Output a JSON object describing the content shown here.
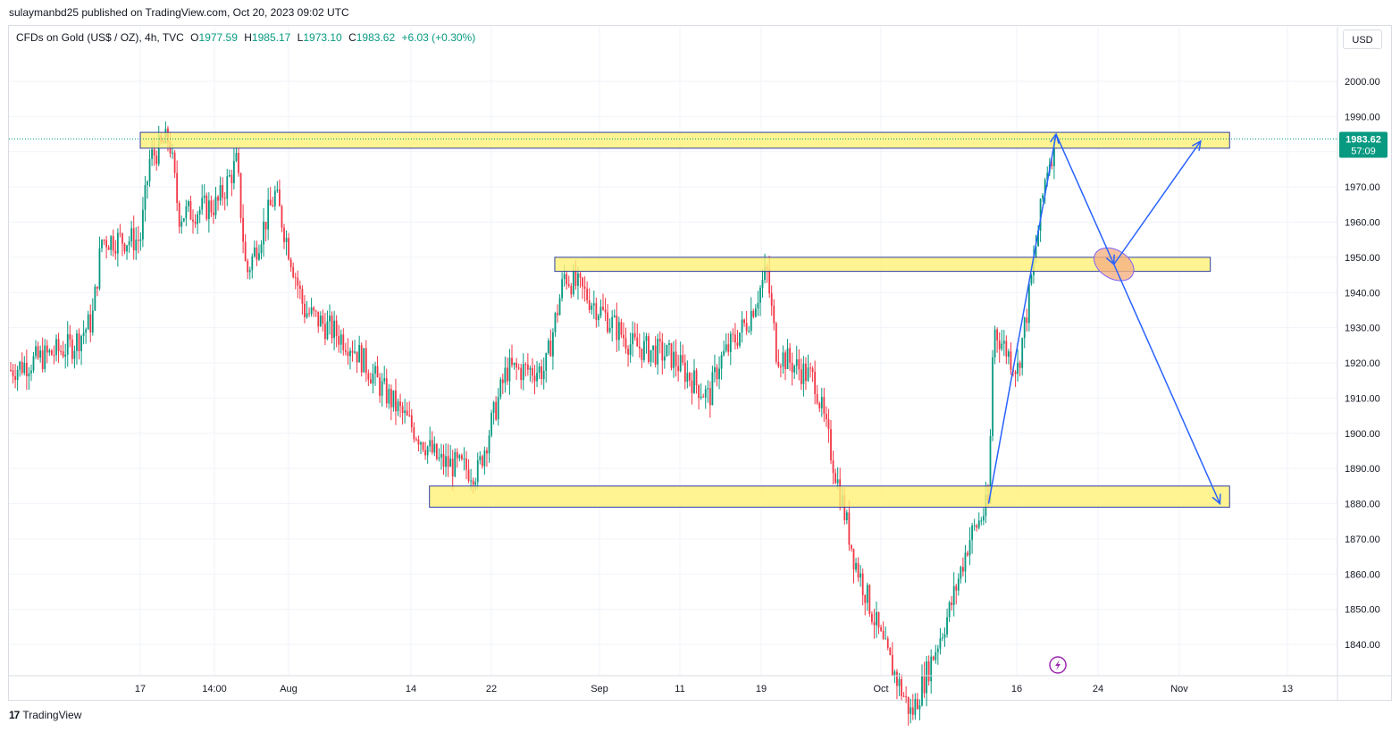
{
  "header": {
    "publisher": "sulaymanbd25 published on TradingView.com, Oct 20, 2023 09:02 UTC"
  },
  "legend": {
    "symbol": "CFDs on Gold (US$ / OZ), 4h, TVC",
    "open_label": "O",
    "open": "1977.59",
    "high_label": "H",
    "high": "1985.17",
    "low_label": "L",
    "low": "1973.10",
    "close_label": "C",
    "close": "1983.62",
    "change": "+6.03 (+0.30%)"
  },
  "currency_button": "USD",
  "price_tag": {
    "price": "1983.62",
    "countdown": "57:09"
  },
  "footer": {
    "brand": "TradingView"
  },
  "colors": {
    "up": "#089981",
    "down": "#f23645",
    "zone_fill": "#fff176",
    "zone_border": "#2d3e9e",
    "arrow": "#2962ff",
    "ellipse_fill": "#f5b183",
    "ellipse_stroke": "#7b61ff"
  },
  "chart_data": {
    "type": "candlestick",
    "symbol": "CFDs on Gold (US$ / OZ)",
    "timeframe": "4h",
    "y_axis": {
      "ticks": [
        1840,
        1850,
        1860,
        1870,
        1880,
        1890,
        1900,
        1910,
        1920,
        1930,
        1940,
        1950,
        1960,
        1970,
        1980,
        1990,
        2000
      ],
      "range": [
        1832,
        2010
      ],
      "position": "right"
    },
    "x_axis": {
      "tick_labels": [
        "17",
        "14:00",
        "Aug",
        "14",
        "22",
        "Sep",
        "11",
        "19",
        "Oct",
        "16",
        "24",
        "Nov",
        "13"
      ]
    },
    "grid": true,
    "price_path": [
      {
        "t": "Jul 10",
        "price": 1925
      },
      {
        "t": "Jul 12",
        "price": 1932
      },
      {
        "t": "Jul 13",
        "price": 1955
      },
      {
        "t": "Jul 17",
        "price": 1955
      },
      {
        "t": "Jul 18",
        "price": 1978
      },
      {
        "t": "Jul 20",
        "price": 1984
      },
      {
        "t": "Jul 21",
        "price": 1962
      },
      {
        "t": "Jul 25",
        "price": 1965
      },
      {
        "t": "Jul 27",
        "price": 1977
      },
      {
        "t": "Jul 28",
        "price": 1945
      },
      {
        "t": "Jul 31",
        "price": 1968
      },
      {
        "t": "Aug 3",
        "price": 1935
      },
      {
        "t": "Aug 8",
        "price": 1925
      },
      {
        "t": "Aug 11",
        "price": 1913
      },
      {
        "t": "Aug 17",
        "price": 1892
      },
      {
        "t": "Aug 21",
        "price": 1889
      },
      {
        "t": "Aug 24",
        "price": 1918
      },
      {
        "t": "Aug 28",
        "price": 1918
      },
      {
        "t": "Aug 30",
        "price": 1945
      },
      {
        "t": "Sep 1",
        "price": 1940
      },
      {
        "t": "Sep 6",
        "price": 1925
      },
      {
        "t": "Sep 10",
        "price": 1922
      },
      {
        "t": "Sep 14",
        "price": 1910
      },
      {
        "t": "Sep 15",
        "price": 1920
      },
      {
        "t": "Sep 18",
        "price": 1932
      },
      {
        "t": "Sep 20",
        "price": 1946
      },
      {
        "t": "Sep 21",
        "price": 1923
      },
      {
        "t": "Sep 25",
        "price": 1915
      },
      {
        "t": "Sep 28",
        "price": 1878
      },
      {
        "t": "Sep 29",
        "price": 1865
      },
      {
        "t": "Oct 2",
        "price": 1840
      },
      {
        "t": "Oct 5",
        "price": 1820
      },
      {
        "t": "Oct 9",
        "price": 1850
      },
      {
        "t": "Oct 11",
        "price": 1870
      },
      {
        "t": "Oct 13",
        "price": 1880
      },
      {
        "t": "Oct 13b",
        "price": 1930
      },
      {
        "t": "Oct 16",
        "price": 1918
      },
      {
        "t": "Oct 17",
        "price": 1935
      },
      {
        "t": "Oct 18",
        "price": 1955
      },
      {
        "t": "Oct 19",
        "price": 1975
      },
      {
        "t": "Oct 20",
        "price": 1983.62
      }
    ],
    "zones": [
      {
        "from": "Jul 17",
        "to": "Nov 7",
        "low": 1981,
        "high": 1985.5
      },
      {
        "from": "Aug 29",
        "to": "Nov 5",
        "low": 1946,
        "high": 1950
      },
      {
        "from": "Aug 16",
        "to": "Nov 7",
        "low": 1879,
        "high": 1885
      }
    ],
    "arrows": [
      {
        "from": [
          "Oct 13",
          1880
        ],
        "to": [
          "Oct 20",
          1985
        ]
      },
      {
        "from": [
          "Oct 20",
          1985
        ],
        "to": [
          "Oct 26",
          1948
        ]
      },
      {
        "from": [
          "Oct 26",
          1948
        ],
        "to": [
          "Nov 4",
          1983
        ]
      },
      {
        "from": [
          "Oct 26",
          1948
        ],
        "to": [
          "Nov 6",
          1880
        ]
      }
    ]
  }
}
